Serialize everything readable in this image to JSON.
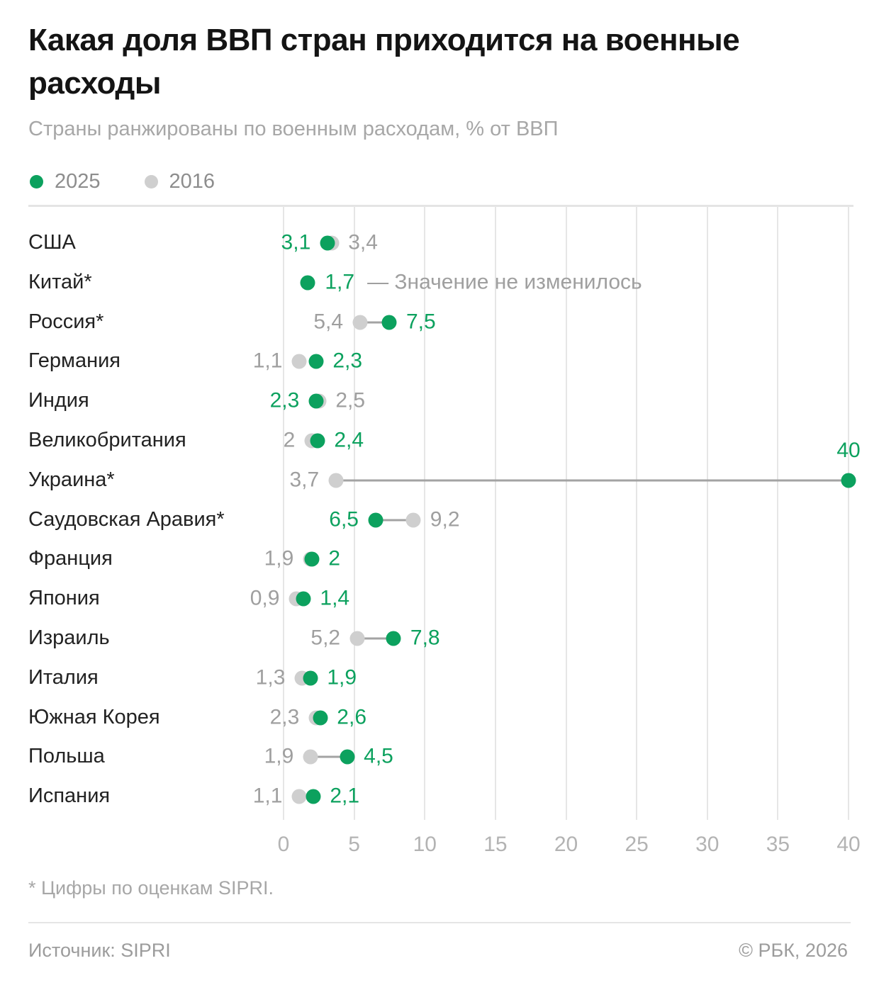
{
  "header": {
    "title": "Какая доля ВВП стран приходится на военные расходы",
    "subtitle": "Страны ранжированы по военным расходам, % от ВВП"
  },
  "legend": {
    "items": [
      {
        "label": "2025",
        "color": "#0CA15E"
      },
      {
        "label": "2016",
        "color": "#cfcfcf"
      }
    ]
  },
  "colors": {
    "accent_2025": "#0CA15E",
    "dot_2016": "#cfcfcf",
    "value_gray": "#9f9f9f",
    "connector": "#a3a3a3"
  },
  "chart_data": {
    "type": "scatter",
    "subtype": "dumbbell",
    "title": "Какая доля ВВП стран приходится на военные расходы",
    "xlabel": "% от ВВП",
    "x_range": [
      0,
      40
    ],
    "x_ticks": [
      0,
      5,
      10,
      15,
      20,
      25,
      30,
      35,
      40
    ],
    "grid": "vertical",
    "legend_position": "top-left",
    "series_names": [
      "2025",
      "2016"
    ],
    "rows": [
      {
        "country": "США",
        "values": {
          "2025": 3.1,
          "2016": 3.4
        },
        "labels": {
          "2025": "3,1",
          "2016": "3,4"
        }
      },
      {
        "country": "Китай*",
        "values": {
          "2025": 1.7,
          "2016": 1.7
        },
        "labels": {
          "2025": "1,7"
        },
        "annotation": "— Значение не изменилось"
      },
      {
        "country": "Россия*",
        "values": {
          "2025": 7.5,
          "2016": 5.4
        },
        "labels": {
          "2025": "7,5",
          "2016": "5,4"
        }
      },
      {
        "country": "Германия",
        "values": {
          "2025": 2.3,
          "2016": 1.1
        },
        "labels": {
          "2025": "2,3",
          "2016": "1,1"
        }
      },
      {
        "country": "Индия",
        "values": {
          "2025": 2.3,
          "2016": 2.5
        },
        "labels": {
          "2025": "2,3",
          "2016": "2,5"
        }
      },
      {
        "country": "Великобритания",
        "values": {
          "2025": 2.4,
          "2016": 2.0
        },
        "labels": {
          "2025": "2,4",
          "2016": "2"
        }
      },
      {
        "country": "Украина*",
        "values": {
          "2025": 40,
          "2016": 3.7
        },
        "labels": {
          "2025": "40",
          "2016": "3,7"
        },
        "label_2025_position": "above"
      },
      {
        "country": "Саудовская Аравия*",
        "values": {
          "2025": 6.5,
          "2016": 9.2
        },
        "labels": {
          "2025": "6,5",
          "2016": "9,2"
        }
      },
      {
        "country": "Франция",
        "values": {
          "2025": 2.0,
          "2016": 1.9
        },
        "labels": {
          "2025": "2",
          "2016": "1,9"
        }
      },
      {
        "country": "Япония",
        "values": {
          "2025": 1.4,
          "2016": 0.9
        },
        "labels": {
          "2025": "1,4",
          "2016": "0,9"
        }
      },
      {
        "country": "Израиль",
        "values": {
          "2025": 7.8,
          "2016": 5.2
        },
        "labels": {
          "2025": "7,8",
          "2016": "5,2"
        }
      },
      {
        "country": "Италия",
        "values": {
          "2025": 1.9,
          "2016": 1.3
        },
        "labels": {
          "2025": "1,9",
          "2016": "1,3"
        }
      },
      {
        "country": "Южная Корея",
        "values": {
          "2025": 2.6,
          "2016": 2.3
        },
        "labels": {
          "2025": "2,6",
          "2016": "2,3"
        }
      },
      {
        "country": "Польша",
        "values": {
          "2025": 4.5,
          "2016": 1.9
        },
        "labels": {
          "2025": "4,5",
          "2016": "1,9"
        }
      },
      {
        "country": "Испания",
        "values": {
          "2025": 2.1,
          "2016": 1.1
        },
        "labels": {
          "2025": "2,1",
          "2016": "1,1"
        }
      }
    ]
  },
  "footnote": "* Цифры по оценкам SIPRI.",
  "footer": {
    "source": "Источник: SIPRI",
    "copyright": "© РБК, 2026"
  }
}
